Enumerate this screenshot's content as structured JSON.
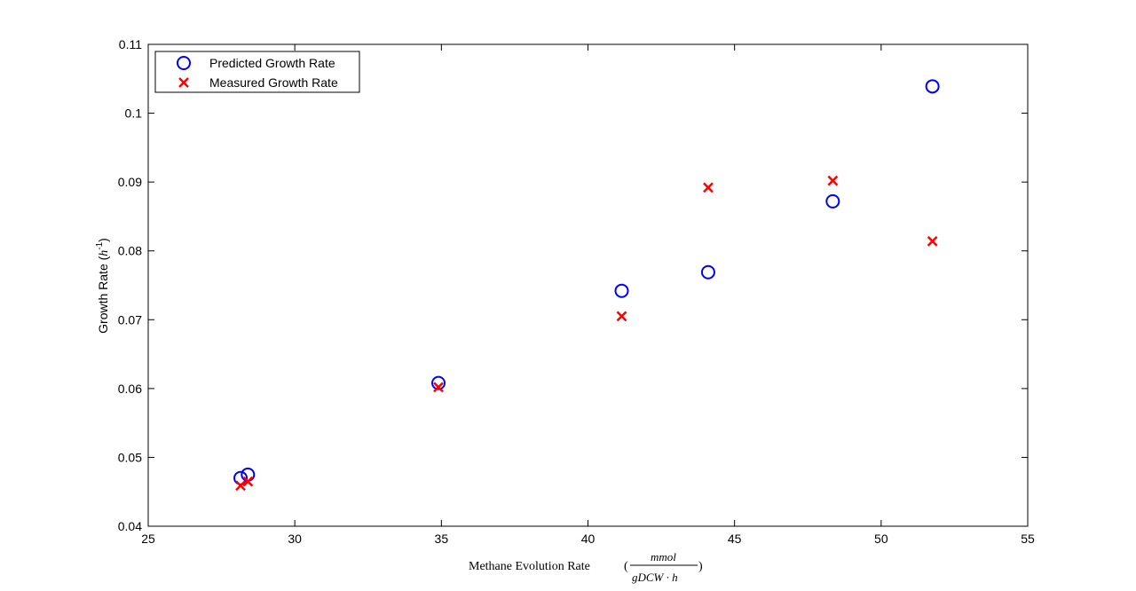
{
  "chart_data": {
    "type": "scatter",
    "xlabel": "Methane Evolution Rate",
    "xlabel_units": {
      "open": "(",
      "numerator": "mmol",
      "denominator": "gDCW · h",
      "close": ")"
    },
    "ylabel": "Growth Rate",
    "ylabel_units": {
      "open": "(",
      "base": "h",
      "exponent": "-1",
      "close": ")"
    },
    "xlim": [
      25,
      55
    ],
    "ylim": [
      0.04,
      0.11
    ],
    "xticks": [
      25,
      30,
      35,
      40,
      45,
      50,
      55
    ],
    "yticks": [
      0.04,
      0.05,
      0.06,
      0.07,
      0.08,
      0.09,
      0.1,
      0.11
    ],
    "xtick_labels": [
      "25",
      "30",
      "35",
      "40",
      "45",
      "50",
      "55"
    ],
    "ytick_labels": [
      "0.04",
      "0.05",
      "0.06",
      "0.07",
      "0.08",
      "0.09",
      "0.1",
      "0.11"
    ],
    "grid": false,
    "legend_position": "top-left",
    "series": [
      {
        "name": "Predicted Growth Rate",
        "marker": "circle",
        "color": "#0000ff",
        "x": [
          28.15,
          28.4,
          34.9,
          41.15,
          44.1,
          48.35,
          51.75
        ],
        "y": [
          0.047,
          0.0475,
          0.0608,
          0.0742,
          0.0769,
          0.0872,
          0.1039
        ]
      },
      {
        "name": "Measured Growth Rate",
        "marker": "x",
        "color": "#ff0000",
        "x": [
          28.15,
          28.4,
          34.9,
          41.15,
          44.1,
          48.35,
          51.75
        ],
        "y": [
          0.0459,
          0.0465,
          0.0602,
          0.0705,
          0.0892,
          0.0902,
          0.0814
        ]
      }
    ]
  }
}
